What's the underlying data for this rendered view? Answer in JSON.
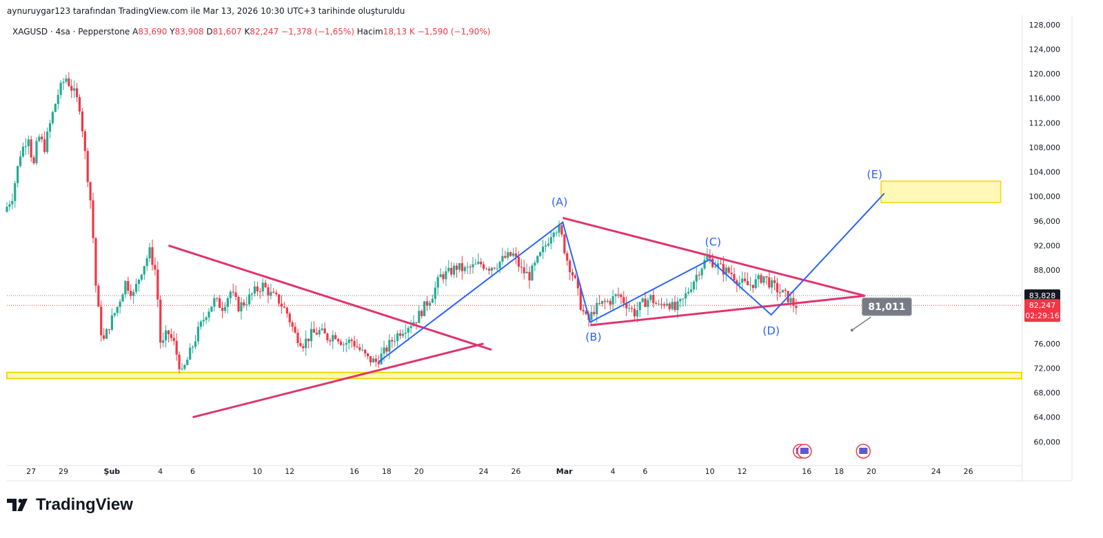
{
  "header": {
    "attribution": "aynuruygar123 tarafından TradingView.com ile Mar 13, 2026 10:30 UTC+3 tarihinde oluşturuldu"
  },
  "legend": {
    "symbol": "XAGUSD · 4sa · Pepperstone",
    "open_label": "A",
    "open": "83,690",
    "high_label": "Y",
    "high": "83,908",
    "low_label": "D",
    "low": "81,607",
    "close_label": "K",
    "close": "82,247",
    "change": "−1,378 (−1,65%)",
    "volume_label": "Hacim",
    "volume": "18,13 K",
    "volume_change": "−1,590 (−1,90%)"
  },
  "brand": {
    "name": "TradingView",
    "logo_icon": "tradingview-logo-icon"
  },
  "colors": {
    "up": "#22ab94",
    "down": "#f23645",
    "triangle": "#e0336e",
    "wave": "#2962ff",
    "zone_fill": "#fff59d",
    "zone_border": "#f5d50a"
  },
  "chart_data": {
    "type": "candlestick",
    "ylim": [
      57000,
      129000
    ],
    "x_range_days": [
      25.5,
      28.3
    ],
    "y_ticks": [
      "128,000",
      "124,000",
      "120,000",
      "116,000",
      "112,000",
      "108,000",
      "104,000",
      "100,000",
      "96,000",
      "92,000",
      "88,000",
      "84,000",
      "76,000",
      "72,000",
      "68,000",
      "64,000",
      "60,000"
    ],
    "x_ticks": [
      {
        "label": "27",
        "day": 27
      },
      {
        "label": "29",
        "day": 29
      },
      {
        "label": "Şub",
        "day": 32
      },
      {
        "label": "4",
        "day": 35
      },
      {
        "label": "6",
        "day": 37
      },
      {
        "label": "10",
        "day": 41
      },
      {
        "label": "12",
        "day": 43
      },
      {
        "label": "16",
        "day": 47
      },
      {
        "label": "18",
        "day": 49
      },
      {
        "label": "20",
        "day": 51
      },
      {
        "label": "24",
        "day": 55
      },
      {
        "label": "26",
        "day": 57
      },
      {
        "label": "Mar",
        "day": 60
      },
      {
        "label": "4",
        "day": 63
      },
      {
        "label": "6",
        "day": 65
      },
      {
        "label": "10",
        "day": 69
      },
      {
        "label": "12",
        "day": 71
      },
      {
        "label": "16",
        "day": 75
      },
      {
        "label": "18",
        "day": 77
      },
      {
        "label": "20",
        "day": 79
      },
      {
        "label": "24",
        "day": 83
      },
      {
        "label": "26",
        "day": 85
      }
    ],
    "price_path": [
      [
        25.5,
        97500
      ],
      [
        26.0,
        100000
      ],
      [
        26.5,
        107000
      ],
      [
        27.0,
        110000
      ],
      [
        27.3,
        104500
      ],
      [
        27.6,
        110000
      ],
      [
        28.0,
        108000
      ],
      [
        28.4,
        112500
      ],
      [
        28.8,
        116500
      ],
      [
        29.3,
        119500
      ],
      [
        29.8,
        117000
      ],
      [
        30.2,
        114500
      ],
      [
        30.5,
        107000
      ],
      [
        30.9,
        98000
      ],
      [
        31.2,
        84000
      ],
      [
        31.6,
        76000
      ],
      [
        32.0,
        79000
      ],
      [
        32.5,
        82000
      ],
      [
        33.0,
        86000
      ],
      [
        33.5,
        84000
      ],
      [
        34.0,
        88000
      ],
      [
        34.5,
        91000
      ],
      [
        34.9,
        87500
      ],
      [
        35.2,
        75000
      ],
      [
        35.6,
        78000
      ],
      [
        36.0,
        76000
      ],
      [
        36.5,
        71000
      ],
      [
        37.0,
        74500
      ],
      [
        37.5,
        78000
      ],
      [
        38.0,
        81000
      ],
      [
        38.5,
        83000
      ],
      [
        39.0,
        82000
      ],
      [
        39.5,
        84500
      ],
      [
        40.0,
        82000
      ],
      [
        40.5,
        83000
      ],
      [
        41.0,
        84500
      ],
      [
        41.5,
        85500
      ],
      [
        42.0,
        84000
      ],
      [
        42.5,
        83000
      ],
      [
        43.0,
        81000
      ],
      [
        43.5,
        77500
      ],
      [
        44.0,
        76000
      ],
      [
        44.5,
        77500
      ],
      [
        45.0,
        78000
      ],
      [
        45.5,
        77000
      ],
      [
        46.0,
        77500
      ],
      [
        46.5,
        76000
      ],
      [
        47.0,
        76500
      ],
      [
        47.5,
        75000
      ],
      [
        48.0,
        73500
      ],
      [
        48.5,
        73000
      ],
      [
        49.0,
        74500
      ],
      [
        49.5,
        76500
      ],
      [
        50.0,
        78000
      ],
      [
        50.5,
        79000
      ],
      [
        51.0,
        80000
      ],
      [
        51.5,
        82000
      ],
      [
        52.0,
        84000
      ],
      [
        52.5,
        87000
      ],
      [
        53.0,
        87500
      ],
      [
        53.5,
        88500
      ],
      [
        54.0,
        88000
      ],
      [
        54.5,
        88500
      ],
      [
        55.0,
        89000
      ],
      [
        55.5,
        88500
      ],
      [
        56.0,
        89000
      ],
      [
        56.5,
        90000
      ],
      [
        57.0,
        90500
      ],
      [
        57.5,
        88000
      ],
      [
        58.0,
        87000
      ],
      [
        58.5,
        89500
      ],
      [
        59.0,
        92000
      ],
      [
        59.5,
        95000
      ],
      [
        59.9,
        94500
      ],
      [
        60.3,
        90000
      ],
      [
        60.8,
        86500
      ],
      [
        61.2,
        82000
      ],
      [
        61.6,
        79500
      ],
      [
        62.0,
        81500
      ],
      [
        62.5,
        82500
      ],
      [
        63.0,
        83000
      ],
      [
        63.5,
        84000
      ],
      [
        64.0,
        82500
      ],
      [
        64.5,
        81000
      ],
      [
        65.0,
        82500
      ],
      [
        65.5,
        83500
      ],
      [
        66.0,
        82000
      ],
      [
        66.5,
        83000
      ],
      [
        67.0,
        81500
      ],
      [
        67.5,
        83000
      ],
      [
        68.0,
        85500
      ],
      [
        68.5,
        88000
      ],
      [
        69.0,
        90000
      ],
      [
        69.5,
        89000
      ],
      [
        70.0,
        88000
      ],
      [
        70.5,
        87500
      ],
      [
        71.0,
        86000
      ],
      [
        71.5,
        85500
      ],
      [
        72.0,
        86000
      ],
      [
        72.5,
        87000
      ],
      [
        73.0,
        85500
      ],
      [
        73.5,
        84500
      ],
      [
        74.0,
        83500
      ],
      [
        74.4,
        82247
      ]
    ],
    "last_price_tag": "82,247",
    "countdown": "02:29:16",
    "prev_price_tag": "83,828",
    "callout": "81,011",
    "wave_labels": [
      {
        "text": "(A)",
        "day": 59.7,
        "price": 98500
      },
      {
        "text": "(B)",
        "day": 61.8,
        "price": 76500
      },
      {
        "text": "(C)",
        "day": 69.2,
        "price": 92000
      },
      {
        "text": "(D)",
        "day": 72.8,
        "price": 77500
      },
      {
        "text": "(E)",
        "day": 79.2,
        "price": 103000
      }
    ],
    "annotations": {
      "triangle1_upper": [
        [
          35.5,
          92000
        ],
        [
          55.5,
          75000
        ]
      ],
      "triangle1_lower": [
        [
          37.0,
          64000
        ],
        [
          55.0,
          76000
        ]
      ],
      "triangle2_upper": [
        [
          59.9,
          96500
        ],
        [
          78.6,
          83800
        ]
      ],
      "triangle2_lower": [
        [
          61.6,
          79000
        ],
        [
          78.6,
          83800
        ]
      ],
      "wave_x_days": [
        48.5,
        59.9,
        61.6,
        69.0,
        72.8,
        79.8
      ],
      "wave_y_prices": [
        73000,
        95800,
        79500,
        89700,
        80700,
        100500
      ],
      "resistance_zone": {
        "day_start": 79.6,
        "day_end": 87.0,
        "low": 99000,
        "high": 102500
      },
      "support_zone": {
        "low": 70300,
        "high": 71300
      }
    },
    "event_markers": [
      {
        "day": 74.6,
        "count": 2
      },
      {
        "day": 78.5,
        "count": 1
      }
    ]
  }
}
